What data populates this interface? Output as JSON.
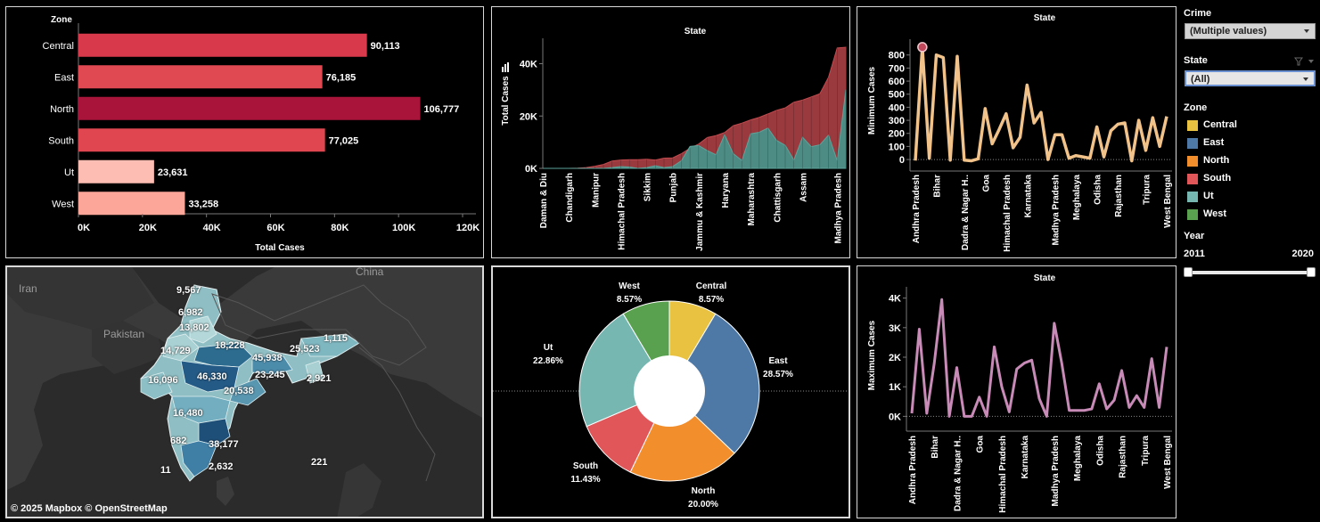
{
  "colors": {
    "zone_central": "#e8c240",
    "zone_east": "#4e79a7",
    "zone_north": "#f28e2b",
    "zone_south": "#e15759",
    "zone_ut": "#76b7b2",
    "zone_west": "#59a14f",
    "area_total": "#9a3a3e",
    "area_ut": "#4c8c84",
    "min_line": "#f1c38a",
    "max_line": "#c88bb8"
  },
  "bar_panel": {
    "header": "Zone",
    "chart_data": {
      "type": "bar",
      "categories": [
        "Central",
        "East",
        "North",
        "South",
        "Ut",
        "West"
      ],
      "values": [
        90113,
        76185,
        106777,
        77025,
        23631,
        33258
      ],
      "labels": [
        "90,113",
        "76,185",
        "106,777",
        "77,025",
        "23,631",
        "33,258"
      ],
      "colors": [
        "#d93a4b",
        "#e04852",
        "#a8143a",
        "#df4650",
        "#fdbdb2",
        "#fca699"
      ],
      "xlabel": "Total Cases",
      "xticks": [
        "0K",
        "20K",
        "40K",
        "60K",
        "80K",
        "100K",
        "120K"
      ],
      "xlim": [
        0,
        120000
      ]
    }
  },
  "area_panel": {
    "chart_data": {
      "type": "area",
      "title": "State",
      "ylabel": "Total Cases",
      "yticks": [
        "0K",
        "20K",
        "40K"
      ],
      "ylim": [
        0,
        48000
      ],
      "xticks": [
        "Daman & Diu",
        "Chandigarh",
        "Manipur",
        "Himachal Pradesh",
        "Sikkim",
        "Punjab",
        "Jammu & Kashmir",
        "Haryana",
        "Maharashtra",
        "Chattisgarh",
        "Assam",
        "Madhya Pradesh"
      ],
      "series": [
        {
          "values": [
            0,
            0,
            0,
            0,
            100,
            300,
            800,
            1500,
            2800,
            3200,
            3300,
            3300,
            3500,
            3200,
            3900,
            4000,
            5600,
            7700,
            9300,
            11800,
            12500,
            13700,
            16300,
            17300,
            18500,
            19500,
            20800,
            22200,
            23100,
            25300,
            26100,
            27300,
            28500,
            34800,
            46000,
            46300
          ]
        },
        {
          "values": [
            0,
            0,
            0,
            0,
            0,
            0,
            0,
            0,
            300,
            700,
            500,
            0,
            300,
            1000,
            300,
            700,
            2900,
            8400,
            8700,
            6800,
            5200,
            12900,
            5600,
            3000,
            13200,
            13800,
            15400,
            10700,
            8800,
            3200,
            11900,
            8300,
            9000,
            12700,
            3000,
            30100
          ]
        }
      ]
    }
  },
  "min_panel": {
    "chart_data": {
      "type": "line",
      "title": "State",
      "ylabel": "Minimum Cases",
      "yticks": [
        "0",
        "100",
        "200",
        "300",
        "400",
        "500",
        "600",
        "700",
        "800"
      ],
      "ylim": [
        -20,
        880
      ],
      "xticks": [
        "Andhra Pradesh",
        "Bihar",
        "Dadra & Nagar H..",
        "Goa",
        "Himachal Pradesh",
        "Karnataka",
        "Madhya Pradesh",
        "Meghalaya",
        "Odisha",
        "Rajasthan",
        "Tripura",
        "West Bengal"
      ],
      "series": [
        {
          "values": [
            -8,
            860,
            10,
            800,
            780,
            -5,
            790,
            -5,
            -10,
            5,
            390,
            120,
            230,
            350,
            90,
            170,
            570,
            280,
            360,
            0,
            190,
            190,
            10,
            30,
            20,
            10,
            250,
            20,
            220,
            270,
            280,
            -10,
            300,
            70,
            320,
            100,
            330
          ]
        }
      ]
    }
  },
  "max_panel": {
    "chart_data": {
      "type": "line",
      "title": "State",
      "ylabel": "Maximum Cases",
      "yticks": [
        "0K",
        "1K",
        "2K",
        "3K",
        "4K"
      ],
      "ylim": [
        -200,
        4200
      ],
      "xticks": [
        "Andhra Pradesh",
        "Bihar",
        "Dadra & Nagar H..",
        "Goa",
        "Himachal Pradesh",
        "Karnataka",
        "Madhya Pradesh",
        "Meghalaya",
        "Odisha",
        "Rajasthan",
        "Tripura",
        "West Bengal"
      ],
      "series": [
        {
          "values": [
            100,
            2950,
            100,
            1800,
            3950,
            0,
            1650,
            0,
            0,
            650,
            0,
            2350,
            1000,
            150,
            1600,
            1800,
            1900,
            600,
            0,
            3150,
            1800,
            200,
            200,
            200,
            250,
            1100,
            250,
            550,
            1550,
            300,
            700,
            300,
            1950,
            300,
            2350
          ]
        }
      ]
    }
  },
  "map_panel": {
    "countries": [
      "Iran",
      "Pakistan",
      "China"
    ],
    "labels": [
      "9,567",
      "6,982",
      "13,802",
      "18,228",
      "14,729",
      "45,938",
      "25,523",
      "1,115",
      "46,330",
      "23,245",
      "16,096",
      "20,538",
      "2,921",
      "16,480",
      "682",
      "38,177",
      "11",
      "2,632",
      "221"
    ],
    "copyright": "© 2025 Mapbox  © OpenStreetMap"
  },
  "pie_panel": {
    "chart_data": {
      "type": "pie",
      "categories": [
        "Central",
        "East",
        "North",
        "South",
        "Ut",
        "West"
      ],
      "values": [
        8.57,
        28.57,
        20.0,
        11.43,
        22.86,
        8.57
      ],
      "labels": [
        "8.57%",
        "28.57%",
        "20.00%",
        "11.43%",
        "22.86%",
        "8.57%"
      ]
    }
  },
  "filters": {
    "crime": {
      "title": "Crime",
      "value": "(Multiple values)"
    },
    "state": {
      "title": "State",
      "value": "(All)"
    },
    "zone": {
      "title": "Zone",
      "items": [
        {
          "label": "Central",
          "color": "#e8c240"
        },
        {
          "label": "East",
          "color": "#4e79a7"
        },
        {
          "label": "North",
          "color": "#f28e2b"
        },
        {
          "label": "South",
          "color": "#e15759"
        },
        {
          "label": "Ut",
          "color": "#76b7b2"
        },
        {
          "label": "West",
          "color": "#59a14f"
        }
      ]
    },
    "year": {
      "title": "Year",
      "min": "2011",
      "max": "2020"
    }
  }
}
